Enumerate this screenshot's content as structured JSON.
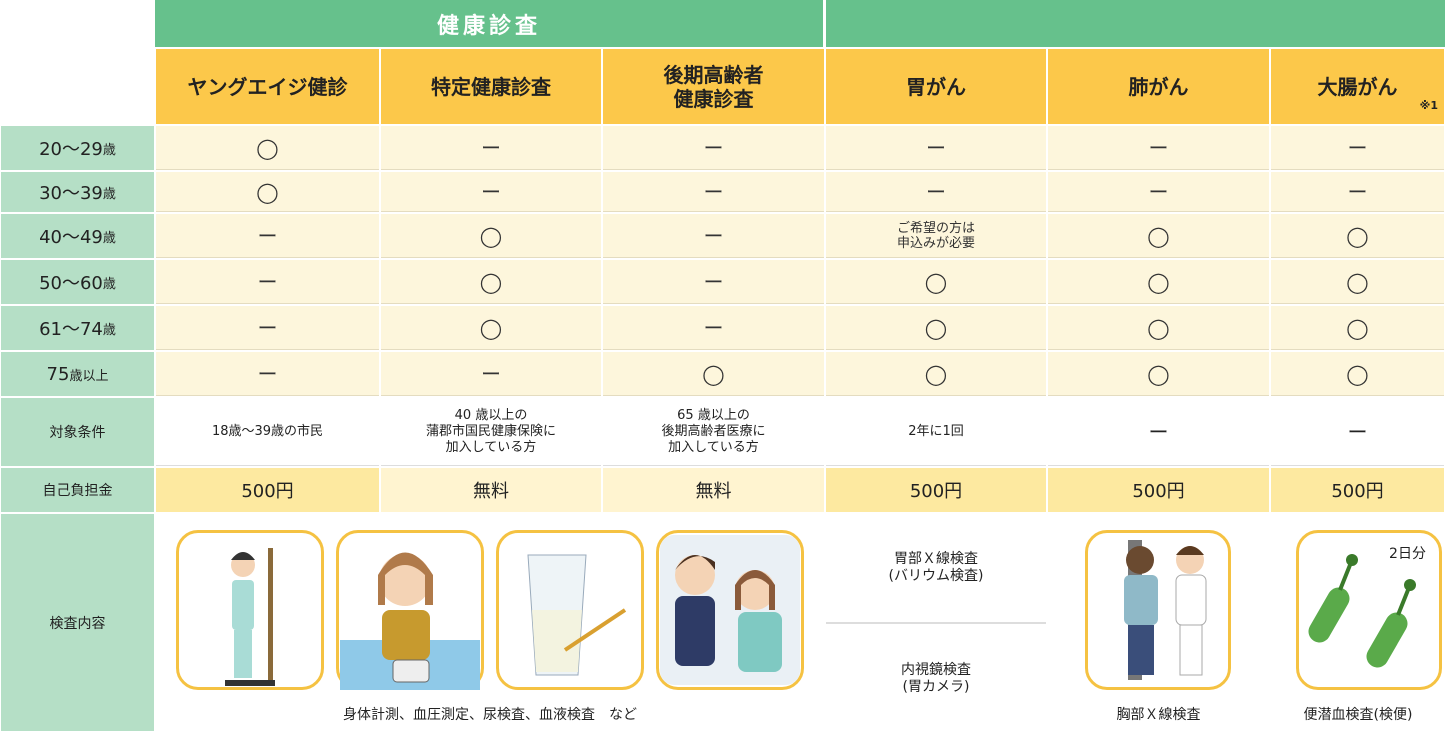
{
  "header": {
    "group": "健康診査",
    "columns": [
      "ヤングエイジ健診",
      "特定健康診査",
      "後期高齢者\n健康診査",
      "胃がん",
      "肺がん",
      "大腸がん"
    ],
    "note": "※1"
  },
  "rows": [
    {
      "label": "20〜29",
      "unit": "歳",
      "cells": [
        "◯",
        "ー",
        "ー",
        "ー",
        "ー",
        "ー"
      ]
    },
    {
      "label": "30〜39",
      "unit": "歳",
      "cells": [
        "◯",
        "ー",
        "ー",
        "ー",
        "ー",
        "ー"
      ]
    },
    {
      "label": "40〜49",
      "unit": "歳",
      "cells": [
        "ー",
        "◯",
        "ー",
        "ご希望の方は\n申込みが必要",
        "◯",
        "◯"
      ]
    },
    {
      "label": "50〜60",
      "unit": "歳",
      "cells": [
        "ー",
        "◯",
        "ー",
        "◯",
        "◯",
        "◯"
      ]
    },
    {
      "label": "61〜74",
      "unit": "歳",
      "cells": [
        "ー",
        "◯",
        "ー",
        "◯",
        "◯",
        "◯"
      ]
    },
    {
      "label": "75",
      "unit": "歳以上",
      "cells": [
        "ー",
        "ー",
        "◯",
        "◯",
        "◯",
        "◯"
      ]
    }
  ],
  "conditions": {
    "label": "対象条件",
    "cells": [
      "18歳〜39歳の市民",
      "40 歳以上の\n蒲郡市国民健康保険に\n加入している方",
      "65 歳以上の\n後期高齢者医療に\n加入している方",
      "2年に1回",
      "ー",
      "ー"
    ]
  },
  "cost": {
    "label": "自己負担金",
    "cells": [
      "500円",
      "無料",
      "無料",
      "500円",
      "500円",
      "500円"
    ]
  },
  "exam": {
    "label": "検査内容",
    "health_caption": "身体計測、血圧測定、尿検査、血液検査　など",
    "stomach": [
      "胃部Ｘ線検査\n(バリウム検査)",
      "内視鏡検査\n(胃カメラ)"
    ],
    "lung_caption": "胸部Ｘ線検査",
    "colon_days": "2日分",
    "colon_caption": "便潜血検査(検便)"
  }
}
